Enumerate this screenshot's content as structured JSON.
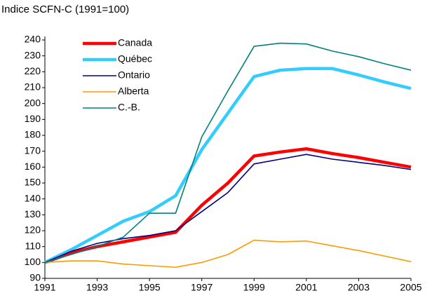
{
  "chart_data": {
    "type": "line",
    "title": "Indice SCFN-C (1991=100)",
    "x": [
      1991,
      1992,
      1993,
      1994,
      1995,
      1996,
      1997,
      1998,
      1999,
      2000,
      2001,
      2002,
      2003,
      2004,
      2005
    ],
    "series": [
      {
        "name": "Canada",
        "color": "#ff0000",
        "line_width": 4.5,
        "values": [
          100,
          106,
          110,
          113,
          116,
          119,
          136,
          150,
          167,
          169.5,
          171.5,
          168.5,
          166,
          163,
          160
        ]
      },
      {
        "name": "Québec",
        "color": "#33ccff",
        "line_width": 4.5,
        "values": [
          100,
          108,
          117,
          126,
          132,
          142,
          171,
          194,
          217,
          221,
          222,
          222,
          218,
          213.5,
          209.5
        ]
      },
      {
        "name": "Ontario",
        "color": "#000080",
        "line_width": 1.6,
        "values": [
          100,
          107,
          112,
          115,
          117,
          120,
          132,
          144,
          162,
          165,
          168,
          165,
          163,
          161,
          158.5
        ]
      },
      {
        "name": "Alberta",
        "color": "#ff9900",
        "line_width": 1.6,
        "values": [
          100,
          101,
          101,
          99,
          98,
          97,
          100,
          105,
          114,
          113,
          113.5,
          110.5,
          107.5,
          104,
          100.5
        ]
      },
      {
        "name": "C.-B.",
        "color": "#008080",
        "line_width": 1.6,
        "values": [
          100,
          105,
          110,
          116,
          131,
          131,
          179,
          208,
          236,
          238,
          237.5,
          233,
          229.5,
          225,
          221
        ]
      }
    ],
    "xlim": [
      1991,
      2005
    ],
    "xticks": [
      1991,
      1993,
      1995,
      1997,
      1999,
      2001,
      2003,
      2005
    ],
    "ylim": [
      90,
      240
    ],
    "yticks": [
      90,
      100,
      110,
      120,
      130,
      140,
      150,
      160,
      170,
      180,
      190,
      200,
      210,
      220,
      230,
      240
    ],
    "grid": false,
    "legend": "upper left"
  }
}
